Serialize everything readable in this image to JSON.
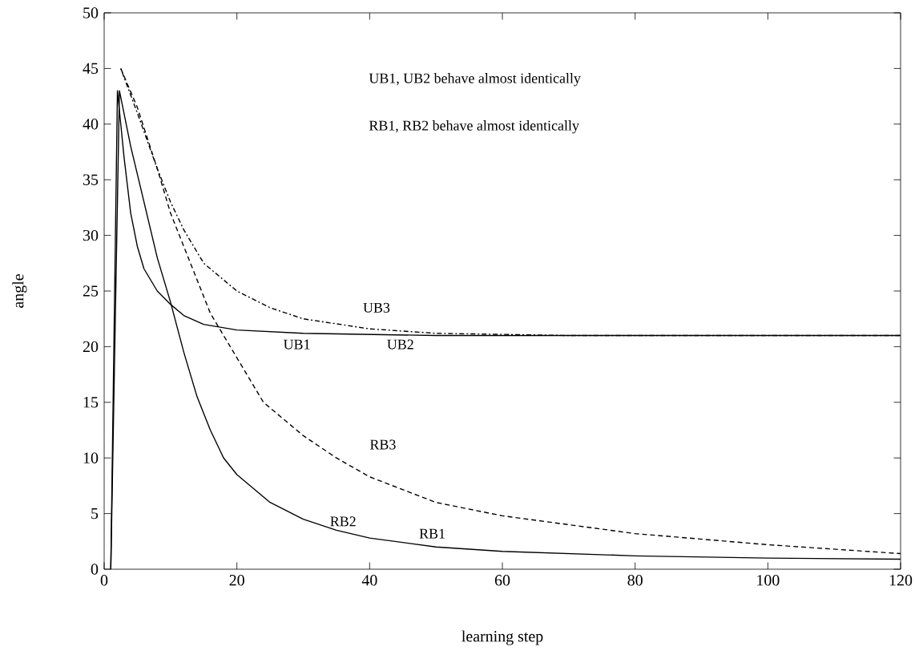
{
  "chart_data": {
    "type": "line",
    "xlabel": "learning step",
    "ylabel": "angle",
    "xlim": [
      0,
      120
    ],
    "xticks": [
      0,
      20,
      40,
      60,
      80,
      100,
      120
    ],
    "ylim": [
      0,
      50
    ],
    "yticks": [
      0,
      5,
      10,
      15,
      20,
      25,
      30,
      35,
      40,
      45,
      50
    ],
    "marker": "none",
    "series": [
      {
        "color": "#000000",
        "line_style": "solid",
        "x": [
          1,
          2,
          3,
          4,
          5,
          6,
          8,
          10,
          12,
          15,
          20,
          30,
          50,
          80,
          120
        ],
        "values": [
          0,
          43,
          37,
          32,
          29,
          27,
          25,
          23.8,
          22.8,
          22,
          21.5,
          21.2,
          21,
          21,
          21
        ]
      },
      {
        "color": "#000000",
        "line_style": "solid",
        "x": [
          1,
          2.3,
          4,
          6,
          8,
          10,
          12,
          14,
          16,
          18,
          20,
          25,
          30,
          35,
          40,
          50,
          60,
          80,
          100,
          120
        ],
        "values": [
          0,
          43,
          38,
          33,
          28,
          24,
          19.5,
          15.5,
          12.5,
          10,
          8.5,
          6,
          4.5,
          3.5,
          2.8,
          2,
          1.6,
          1.2,
          1,
          0.9
        ]
      },
      {
        "color": "#000000",
        "line_style": "dotted",
        "x": [
          2.5,
          5,
          8,
          10,
          12,
          15,
          20,
          25,
          30,
          40,
          50,
          70,
          120
        ],
        "values": [
          45,
          41,
          36,
          33,
          30.5,
          27.5,
          25,
          23.5,
          22.5,
          21.6,
          21.2,
          21,
          21
        ]
      },
      {
        "color": "#000000",
        "line_style": "dashed",
        "x": [
          2.5,
          5,
          8,
          10,
          12,
          14,
          16,
          18,
          20,
          24,
          30,
          35,
          40,
          50,
          60,
          80,
          100,
          120
        ],
        "values": [
          45,
          41.5,
          36,
          32,
          29,
          26,
          23,
          21,
          19,
          15,
          12,
          10,
          8.3,
          6,
          4.8,
          3.2,
          2.2,
          1.4
        ]
      }
    ],
    "annotations": [
      "UB1, UB2 behave almost identically",
      "RB1, RB2 behave almost identically",
      "UB3",
      "UB1",
      "UB2",
      "RB3",
      "RB2",
      "RB1"
    ]
  }
}
